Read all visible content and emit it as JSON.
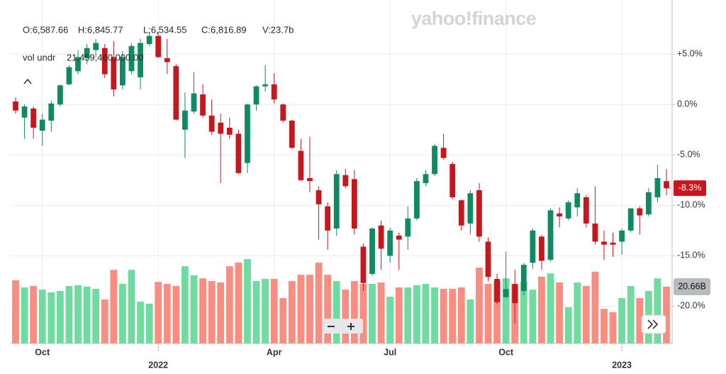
{
  "chart_data": {
    "type": "candlestick",
    "watermark": "yahoo!finance",
    "readout": [
      "O:6,587.66",
      "H:6,845.77",
      "L:6,534.55",
      "C:6,816.89",
      "V:23.7b"
    ],
    "indicator": "vol undr",
    "indicator_value": "21,459,460,000.00",
    "categories": [
      null,
      null,
      null,
      "Oct",
      null,
      null,
      null,
      null,
      null,
      null,
      null,
      null,
      null,
      null,
      null,
      null,
      "2022",
      null,
      null,
      null,
      null,
      null,
      null,
      null,
      null,
      null,
      null,
      null,
      null,
      "Apr",
      null,
      null,
      null,
      null,
      null,
      null,
      null,
      null,
      null,
      null,
      null,
      null,
      "Jul",
      null,
      null,
      null,
      null,
      null,
      null,
      null,
      null,
      null,
      null,
      null,
      null,
      "Oct",
      null,
      null,
      null,
      null,
      null,
      null,
      null,
      null,
      null,
      null,
      null,
      null,
      "2023",
      null,
      null,
      null,
      null,
      null
    ],
    "open": [
      0.3,
      -1.3,
      -0.4,
      -2.6,
      -1.6,
      0,
      2.0,
      3.3,
      4.6,
      5.4,
      5.6,
      4.7,
      1.9,
      3.3,
      2.7,
      6.0,
      6.8,
      4.6,
      3.8,
      -2.5,
      -0.7,
      1.0,
      -1.1,
      -1.8,
      -2.3,
      -2.9,
      -5.8,
      0,
      1.8,
      2.0,
      0,
      -1.6,
      -4.6,
      -7.3,
      -8.5,
      -10.1,
      -12.3,
      -7.0,
      -7.4,
      -14.1,
      -16.8,
      -12.0,
      -15.0,
      -13.0,
      -13.1,
      -11.3,
      -7.8,
      -6.9,
      -4.3,
      -5.9,
      -9.5,
      -11.8,
      -8.5,
      -13.6,
      -17.3,
      -19.1,
      -17.8,
      -18.5,
      -15.7,
      -13.1,
      -15.4,
      -10.8,
      -11.3,
      -10.2,
      -9.2,
      -11.8,
      -13.6,
      -13.7,
      -13.6,
      -12.5,
      -10.3,
      -10.9,
      -9.2,
      -7.6
    ],
    "high": [
      0.7,
      0,
      -0.2,
      -0.9,
      0.4,
      2.0,
      3.9,
      5.4,
      6.0,
      6.5,
      6.0,
      6.3,
      5.3,
      6.1,
      6.5,
      7.2,
      7.2,
      6.5,
      4.0,
      1.2,
      3.2,
      2.0,
      0.5,
      -0.9,
      -1.3,
      -2.5,
      0.1,
      1.9,
      3.9,
      3.1,
      0.1,
      -1.5,
      -3.4,
      -3.2,
      -8.1,
      -9.7,
      -6.5,
      -6.4,
      -6.5,
      -13.8,
      -12.2,
      -11.5,
      -12.2,
      -12.7,
      -10.1,
      -7.3,
      -6.5,
      -3.9,
      -2.9,
      -5.7,
      -9.4,
      -8.5,
      -7.8,
      -13.2,
      -16.8,
      -14.6,
      -16.4,
      -15.7,
      -12.3,
      -12.9,
      -10.3,
      -10.2,
      -9.5,
      -8.3,
      -9.0,
      -8.1,
      -12.5,
      -12.7,
      -12.3,
      -10.3,
      -10.1,
      -8.3,
      -6.0,
      -6.4
    ],
    "low": [
      -0.9,
      -3.4,
      -3.4,
      -4.1,
      -2.7,
      -0.2,
      1.9,
      3.0,
      4.0,
      4.7,
      2.6,
      0.8,
      1.5,
      3.0,
      1.5,
      5.8,
      4.6,
      3.0,
      -1.6,
      -5.3,
      -0.9,
      -1.3,
      -3.0,
      -7.8,
      -3.4,
      -6.9,
      -6.8,
      -0.6,
      1.3,
      0.1,
      -1.8,
      -4.4,
      -7.6,
      -8.7,
      -13.4,
      -14.4,
      -13.0,
      -8.3,
      -12.9,
      -18.5,
      -17.0,
      -16.4,
      -15.7,
      -16.4,
      -14.4,
      -11.5,
      -8.1,
      -7.1,
      -5.5,
      -9.4,
      -12.5,
      -12.9,
      -13.6,
      -17.5,
      -19.8,
      -19.2,
      -21.7,
      -18.9,
      -16.3,
      -16.4,
      -15.6,
      -12.2,
      -11.5,
      -11.1,
      -12.2,
      -13.9,
      -15.4,
      -15.1,
      -14.9,
      -12.7,
      -12.9,
      -11.1,
      -9.7,
      -9.0
    ],
    "close": [
      -0.6,
      -0.2,
      -2.3,
      -1.5,
      0.1,
      1.9,
      3.7,
      4.7,
      5.6,
      6.1,
      3.0,
      1.5,
      4.7,
      5.8,
      6.1,
      6.8,
      4.7,
      4.2,
      -1.5,
      -0.6,
      1.1,
      -1.1,
      -2.7,
      -2.9,
      -3.0,
      -6.8,
      0,
      1.8,
      2.0,
      0.5,
      -1.6,
      -4.3,
      -7.5,
      -7.6,
      -9.9,
      -12.5,
      -6.9,
      -8.1,
      -12.3,
      -17.7,
      -12.3,
      -14.3,
      -12.5,
      -13.4,
      -11.3,
      -7.6,
      -6.9,
      -4.1,
      -5.3,
      -9.2,
      -12.0,
      -8.8,
      -13.1,
      -17.1,
      -19.6,
      -18.3,
      -19.7,
      -15.9,
      -12.5,
      -15.5,
      -10.5,
      -11.1,
      -9.7,
      -8.8,
      -11.8,
      -13.6,
      -13.9,
      -13.9,
      -12.5,
      -10.3,
      -11.0,
      -8.7,
      -7.3,
      -8.3
    ],
    "volume": [
      23.0,
      20.4,
      20.9,
      19.6,
      18.6,
      19.1,
      20.9,
      21.2,
      20.7,
      19.9,
      16.0,
      26.8,
      21.7,
      26.8,
      15.2,
      14.5,
      22.4,
      21.7,
      20.9,
      28.1,
      24.8,
      23.7,
      22.7,
      22.2,
      28.1,
      29.4,
      30.7,
      22.7,
      23.5,
      23.5,
      16.5,
      22.7,
      25.0,
      25.0,
      29.4,
      25.0,
      22.7,
      19.6,
      22.7,
      21.7,
      21.7,
      22.2,
      17.0,
      20.4,
      20.4,
      21.2,
      21.7,
      20.4,
      19.9,
      19.9,
      20.4,
      16.0,
      27.6,
      21.7,
      22.7,
      23.7,
      21.7,
      22.4,
      19.6,
      24.3,
      25.5,
      22.2,
      13.2,
      22.2,
      20.9,
      26.1,
      12.6,
      11.4,
      16.5,
      20.9,
      16.5,
      19.1,
      23.7,
      20.66
    ],
    "price_tag": "-8.3%",
    "volume_tag": "20.66B",
    "ylim": [
      -23.7,
      9.8
    ],
    "yticks": [
      {
        "value": 5,
        "label": "+5.0%"
      },
      {
        "value": 0,
        "label": "0.0%"
      },
      {
        "value": -5,
        "label": "-5.0%"
      },
      {
        "value": -10,
        "label": "-10.0%"
      },
      {
        "value": -15,
        "label": "-15.0%"
      },
      {
        "value": -20,
        "label": "-20.0%"
      }
    ],
    "volume_lim": [
      0,
      122.9
    ],
    "grid": true,
    "up_color": "#0f8a62",
    "down_color": "#c8161d",
    "volume_up_color": "#6fdc9f",
    "volume_down_color": "#fa8d7f",
    "volume_tag_color": "#b9bcbf"
  }
}
